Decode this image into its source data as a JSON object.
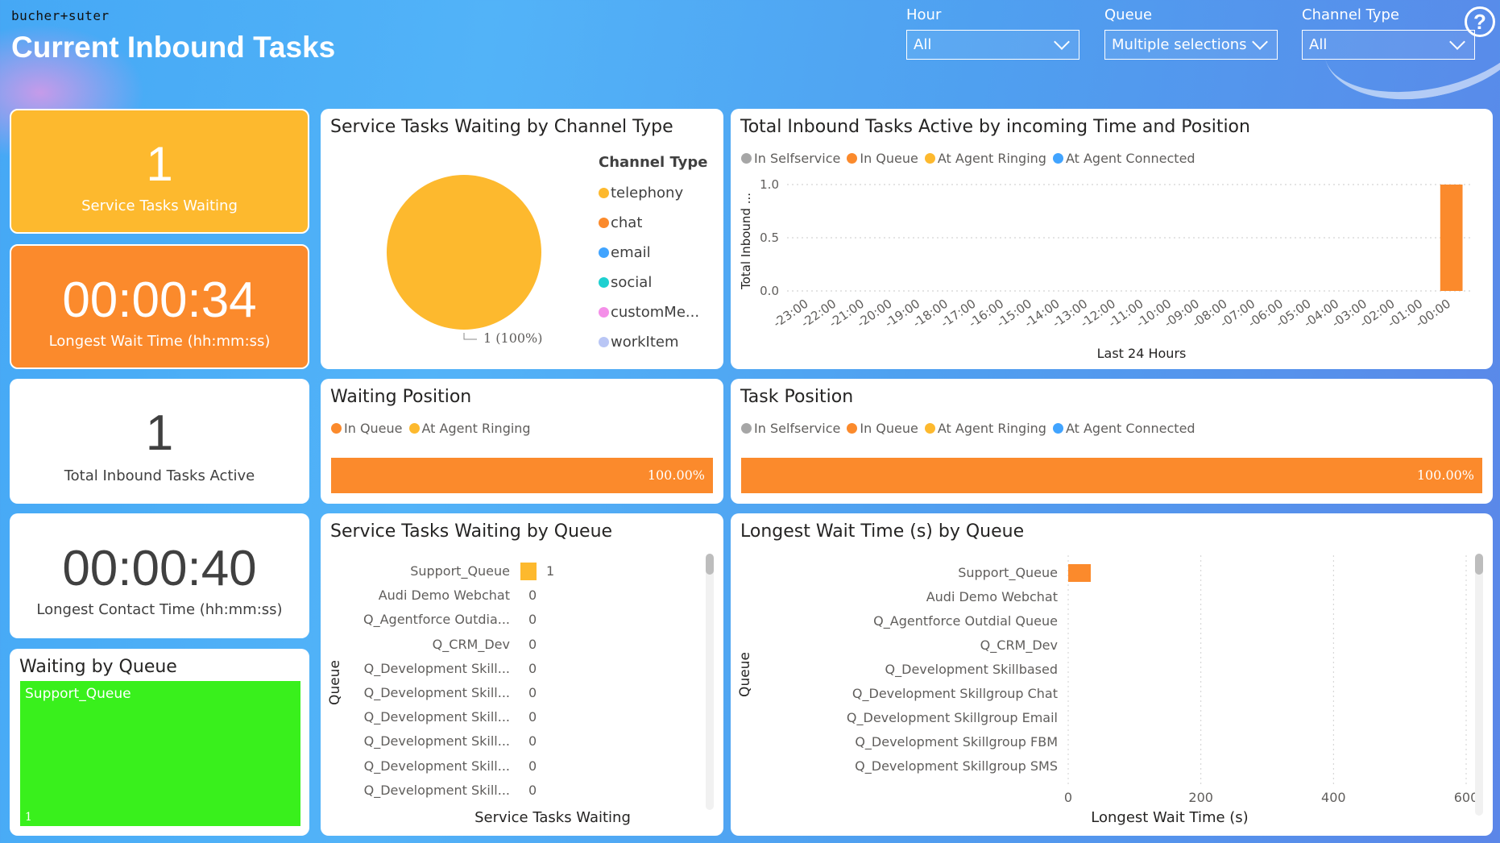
{
  "header": {
    "brand": "bucher+suter",
    "title": "Current Inbound Tasks",
    "help_icon": "question-circle-icon"
  },
  "filters": [
    {
      "label": "Hour",
      "value": "All"
    },
    {
      "label": "Queue",
      "value": "Multiple selections"
    },
    {
      "label": "Channel Type",
      "value": "All"
    }
  ],
  "kpis": {
    "service_tasks_waiting": {
      "value": "1",
      "label": "Service Tasks Waiting",
      "color": "#fdb92e"
    },
    "longest_wait": {
      "value": "00:00:34",
      "label": "Longest Wait Time (hh:mm:ss)",
      "color": "#fb8a2c"
    },
    "total_active": {
      "value": "1",
      "label": "Total Inbound Tasks Active"
    },
    "longest_contact": {
      "value": "00:00:40",
      "label": "Longest Contact Time (hh:mm:ss)"
    }
  },
  "waiting_by_queue": {
    "title": "Waiting by Queue",
    "tile_label": "Support_Queue",
    "tile_value": "1",
    "color": "#39f01c"
  },
  "pie_card": {
    "title": "Service Tasks Waiting by Channel Type",
    "legend_title": "Channel Type",
    "legend": [
      {
        "name": "telephony",
        "color": "#fdb92e"
      },
      {
        "name": "chat",
        "color": "#fb8a2c"
      },
      {
        "name": "email",
        "color": "#41a4ff"
      },
      {
        "name": "social",
        "color": "#1ed0d0"
      },
      {
        "name": "customMe...",
        "color": "#f48fe8"
      },
      {
        "name": "workItem",
        "color": "#b9c6f5"
      }
    ],
    "slice_label": "1 (100%)"
  },
  "timeline_card": {
    "title": "Total Inbound Tasks Active by incoming Time and Position",
    "legend": [
      {
        "name": "In Selfservice",
        "color": "#a6a6a6"
      },
      {
        "name": "In Queue",
        "color": "#fb8a2c"
      },
      {
        "name": "At Agent Ringing",
        "color": "#fdb92e"
      },
      {
        "name": "At Agent Connected",
        "color": "#41a4ff"
      }
    ],
    "ylabel": "Total Inbound ...",
    "xlabel": "Last 24 Hours",
    "yticks": [
      "1.0",
      "0.5",
      "0.0"
    ]
  },
  "waiting_position": {
    "title": "Waiting Position",
    "legend": [
      {
        "name": "In Queue",
        "color": "#fb8a2c"
      },
      {
        "name": "At Agent Ringing",
        "color": "#fdb92e"
      }
    ],
    "bar_label": "100.00%"
  },
  "task_position": {
    "title": "Task Position",
    "legend": [
      {
        "name": "In Selfservice",
        "color": "#a6a6a6"
      },
      {
        "name": "In Queue",
        "color": "#fb8a2c"
      },
      {
        "name": "At Agent Ringing",
        "color": "#fdb92e"
      },
      {
        "name": "At Agent Connected",
        "color": "#41a4ff"
      }
    ],
    "bar_label": "100.00%"
  },
  "stq_card": {
    "title": "Service Tasks Waiting by Queue",
    "ylabel": "Queue",
    "xlabel": "Service Tasks Waiting"
  },
  "lwt_card": {
    "title": "Longest Wait Time (s) by Queue",
    "ylabel": "Queue",
    "xlabel": "Longest Wait Time (s)",
    "xticks": [
      "0",
      "200",
      "400",
      "600"
    ]
  },
  "chart_data": [
    {
      "type": "pie",
      "title": "Service Tasks Waiting by Channel Type",
      "categories": [
        "telephony"
      ],
      "values": [
        1
      ],
      "percent": [
        100
      ]
    },
    {
      "type": "bar",
      "title": "Total Inbound Tasks Active by incoming Time and Position",
      "categories": [
        "-23:00",
        "-22:00",
        "-21:00",
        "-20:00",
        "-19:00",
        "-18:00",
        "-17:00",
        "-16:00",
        "-15:00",
        "-14:00",
        "-13:00",
        "-12:00",
        "-11:00",
        "-10:00",
        "-09:00",
        "-08:00",
        "-07:00",
        "-06:00",
        "-05:00",
        "-04:00",
        "-03:00",
        "-02:00",
        "-01:00",
        "-00:00"
      ],
      "series": [
        {
          "name": "In Queue",
          "values": [
            0,
            0,
            0,
            0,
            0,
            0,
            0,
            0,
            0,
            0,
            0,
            0,
            0,
            0,
            0,
            0,
            0,
            0,
            0,
            0,
            0,
            0,
            0,
            1
          ]
        }
      ],
      "ylim": [
        0,
        1
      ],
      "xlabel": "Last 24 Hours",
      "ylabel": "Total Inbound ..."
    },
    {
      "type": "bar",
      "title": "Waiting Position",
      "series": [
        {
          "name": "In Queue",
          "values": [
            100
          ]
        }
      ],
      "unit": "%"
    },
    {
      "type": "bar",
      "title": "Task Position",
      "series": [
        {
          "name": "In Queue",
          "values": [
            100
          ]
        }
      ],
      "unit": "%"
    },
    {
      "type": "bar",
      "title": "Service Tasks Waiting by Queue",
      "categories": [
        "Support_Queue",
        "Audi Demo Webchat",
        "Q_Agentforce Outdia...",
        "Q_CRM_Dev",
        "Q_Development Skill...",
        "Q_Development Skill...",
        "Q_Development Skill...",
        "Q_Development Skill...",
        "Q_Development Skill...",
        "Q_Development Skill..."
      ],
      "values": [
        1,
        0,
        0,
        0,
        0,
        0,
        0,
        0,
        0,
        0
      ],
      "xlabel": "Service Tasks Waiting",
      "ylabel": "Queue"
    },
    {
      "type": "bar",
      "title": "Longest Wait Time (s) by Queue",
      "categories": [
        "Support_Queue",
        "Audi Demo Webchat",
        "Q_Agentforce Outdial Queue",
        "Q_CRM_Dev",
        "Q_Development Skillbased",
        "Q_Development Skillgroup Chat",
        "Q_Development Skillgroup Email",
        "Q_Development Skillgroup FBM",
        "Q_Development Skillgroup SMS"
      ],
      "values": [
        34,
        0,
        0,
        0,
        0,
        0,
        0,
        0,
        0
      ],
      "xlim": [
        0,
        600
      ],
      "xlabel": "Longest Wait Time (s)",
      "ylabel": "Queue"
    }
  ]
}
